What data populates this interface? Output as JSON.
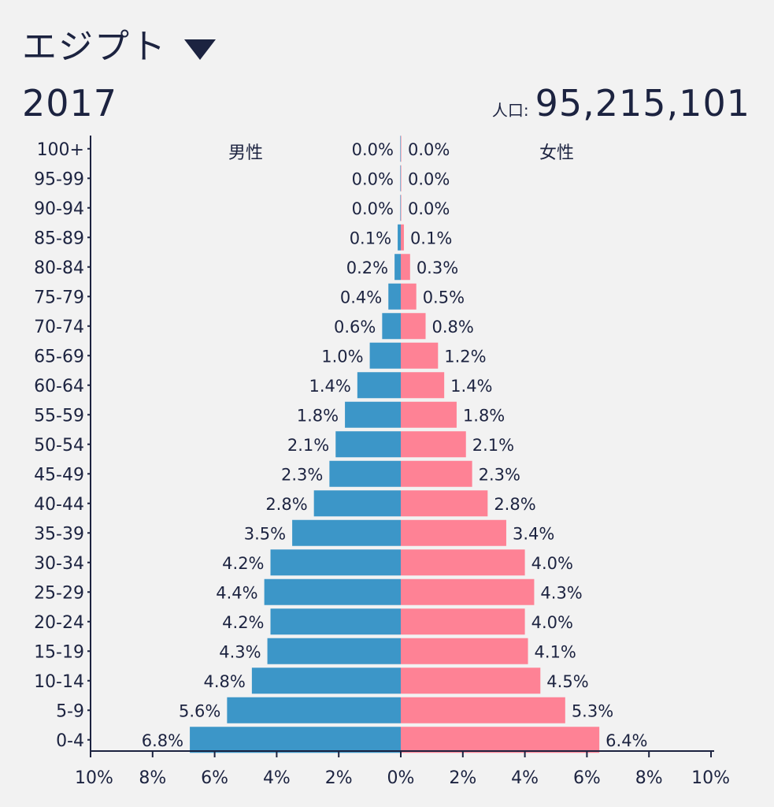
{
  "header": {
    "country": "エジプト",
    "year": "2017",
    "population_label": "人口:",
    "population_value": "95,215,101"
  },
  "colors": {
    "male": "#3c96c8",
    "female": "#fe8295",
    "text": "#1c2340",
    "background": "#f2f2f2"
  },
  "icons": {
    "country_dropdown": "caret-down-icon"
  },
  "chart_data": {
    "type": "bar",
    "orientation": "horizontal-population-pyramid",
    "categories": [
      "100+",
      "95-99",
      "90-94",
      "85-89",
      "80-84",
      "75-79",
      "70-74",
      "65-69",
      "60-64",
      "55-59",
      "50-54",
      "45-49",
      "40-44",
      "35-39",
      "30-34",
      "25-29",
      "20-24",
      "15-19",
      "10-14",
      "5-9",
      "0-4"
    ],
    "series": [
      {
        "name": "男性",
        "side": "left",
        "values": [
          0.0,
          0.0,
          0.0,
          0.1,
          0.2,
          0.4,
          0.6,
          1.0,
          1.4,
          1.8,
          2.1,
          2.3,
          2.8,
          3.5,
          4.2,
          4.4,
          4.2,
          4.3,
          4.8,
          5.6,
          6.8
        ],
        "labels": [
          "0.0%",
          "0.0%",
          "0.0%",
          "0.1%",
          "0.2%",
          "0.4%",
          "0.6%",
          "1.0%",
          "1.4%",
          "1.8%",
          "2.1%",
          "2.3%",
          "2.8%",
          "3.5%",
          "4.2%",
          "4.4%",
          "4.2%",
          "4.3%",
          "4.8%",
          "5.6%",
          "6.8%"
        ]
      },
      {
        "name": "女性",
        "side": "right",
        "values": [
          0.0,
          0.0,
          0.0,
          0.1,
          0.3,
          0.5,
          0.8,
          1.2,
          1.4,
          1.8,
          2.1,
          2.3,
          2.8,
          3.4,
          4.0,
          4.3,
          4.0,
          4.1,
          4.5,
          5.3,
          6.4
        ],
        "labels": [
          "0.0%",
          "0.0%",
          "0.0%",
          "0.1%",
          "0.3%",
          "0.5%",
          "0.8%",
          "1.2%",
          "1.4%",
          "1.8%",
          "2.1%",
          "2.3%",
          "2.8%",
          "3.4%",
          "4.0%",
          "4.3%",
          "4.0%",
          "4.1%",
          "4.5%",
          "5.3%",
          "6.4%"
        ]
      }
    ],
    "xlim": [
      -10,
      10
    ],
    "x_ticks": [
      -10,
      -8,
      -6,
      -4,
      -2,
      0,
      2,
      4,
      6,
      8,
      10
    ],
    "x_tick_labels": [
      "10%",
      "8%",
      "6%",
      "4%",
      "2%",
      "0%",
      "2%",
      "4%",
      "6%",
      "8%",
      "10%"
    ],
    "grid": false,
    "legend": "top (series names over each side)"
  }
}
